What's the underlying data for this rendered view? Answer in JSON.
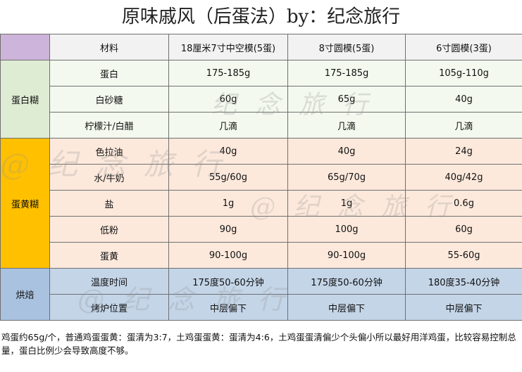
{
  "title": "原味戚风（后蛋法）by：纪念旅行",
  "header": [
    "材料",
    "18厘米7寸中空模(5蛋)",
    "8寸圆模(5蛋)",
    "6寸圆模(3蛋)"
  ],
  "groups": [
    {
      "label": "蛋白糊",
      "rows": [
        [
          "蛋白",
          "175-185g",
          "175-185g",
          "105g-110g"
        ],
        [
          "白砂糖",
          "60g",
          "65g",
          "40g"
        ],
        [
          "柠檬汁/白醋",
          "几滴",
          "几滴",
          "几滴"
        ]
      ]
    },
    {
      "label": "蛋黄糊",
      "rows": [
        [
          "色拉油",
          "40g",
          "40g",
          "24g"
        ],
        [
          "水/牛奶",
          "55g/60g",
          "65g/70g",
          "40g/42g"
        ],
        [
          "盐",
          "1g",
          "1g",
          "0.6g"
        ],
        [
          "低粉",
          "90g",
          "100g",
          "60g"
        ],
        [
          "蛋黄",
          "90-100g",
          "90-100g",
          "55-60g"
        ]
      ]
    },
    {
      "label": "烘焙",
      "rows": [
        [
          "温度时间",
          "175度50-60分钟",
          "175度50-60分钟",
          "180度35-40分钟"
        ],
        [
          "烤炉位置",
          "中层偏下",
          "中层偏下",
          "中层偏下"
        ]
      ]
    }
  ],
  "note": "鸡蛋约65g/个，普通鸡蛋蛋黄：蛋清为3:7，土鸡蛋蛋黄：蛋清为4:6，土鸡蛋蛋清偏少个头偏小所以最好用洋鸡蛋，比较容易控制总量，蛋白比例少会导致高度不够。",
  "watermark": "纪念旅行",
  "watermark_prefix": "@",
  "colors": {
    "header_corner": "#cdb4da",
    "egg_white_group": "#dfecd4",
    "egg_yolk_group": "#ffc000",
    "bake_group": "#a9c2e0"
  }
}
